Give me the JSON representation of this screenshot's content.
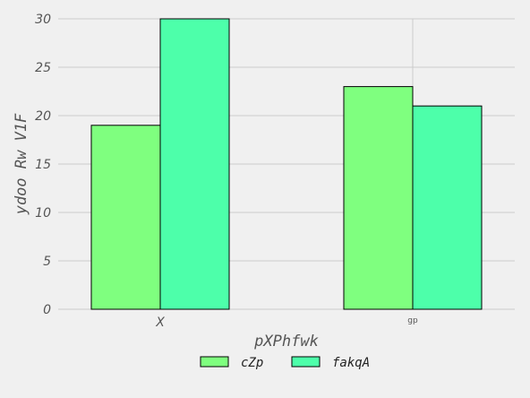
{
  "chart_data": {
    "type": "bar",
    "categories": [
      "X",
      "gp"
    ],
    "series": [
      {
        "name": "cZp",
        "values": [
          19,
          23
        ],
        "color": "#7fff7f"
      },
      {
        "name": "fakqA",
        "values": [
          30,
          21
        ],
        "color": "#4dffaa"
      }
    ],
    "title": "",
    "xlabel": "pXPhfwk",
    "ylabel": "ydoo  Rw  V1F",
    "ylim": [
      0,
      30
    ],
    "yticks": [
      0,
      5,
      10,
      15,
      20,
      25,
      30
    ],
    "grid": true,
    "legend": "bottom-center"
  }
}
